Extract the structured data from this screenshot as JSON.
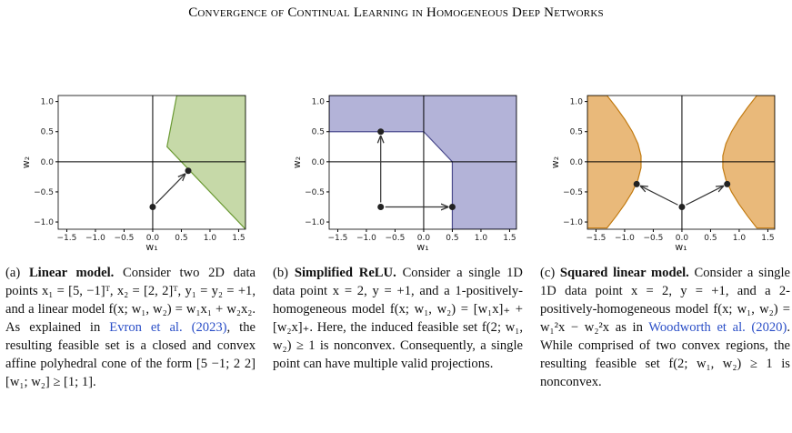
{
  "header": {
    "title": "Convergence of Continual Learning in Homogeneous Deep Networks"
  },
  "chart_data": [
    {
      "type": "region",
      "xlabel": "w₁",
      "ylabel": "w₂",
      "xlim": [
        -1.65,
        1.62
      ],
      "ylim": [
        -1.12,
        1.1
      ],
      "xticks": [
        {
          "value": -1.5,
          "label": "−1.5"
        },
        {
          "value": -1.0,
          "label": "−1.0"
        },
        {
          "value": -0.5,
          "label": "−0.5"
        },
        {
          "value": 0,
          "label": "0.0"
        },
        {
          "value": 0.5,
          "label": "0.5"
        },
        {
          "value": 1.0,
          "label": "1.0"
        },
        {
          "value": 1.5,
          "label": "1.5"
        }
      ],
      "yticks": [
        {
          "value": -1.0,
          "label": "−1.0"
        },
        {
          "value": -0.5,
          "label": "−0.5"
        },
        {
          "value": 0,
          "label": "0.0"
        },
        {
          "value": 0.5,
          "label": "0.5"
        },
        {
          "value": 1.0,
          "label": "1.0"
        }
      ],
      "regions": [
        {
          "color": "#c6d9a8",
          "edge": "#6b9a34",
          "x": [
            0.25,
            0.42,
            1.62,
            1.62
          ],
          "y": [
            0.25,
            1.1,
            1.1,
            -1.12
          ]
        }
      ],
      "points": {
        "x": [
          0,
          0.62
        ],
        "y": [
          -0.75,
          -0.15
        ]
      }
    },
    {
      "type": "region",
      "xlabel": "w₁",
      "ylabel": "w₂",
      "xlim": [
        -1.65,
        1.62
      ],
      "ylim": [
        -1.12,
        1.1
      ],
      "xticks": [
        {
          "value": -1.5,
          "label": "−1.5"
        },
        {
          "value": -1.0,
          "label": "−1.0"
        },
        {
          "value": -0.5,
          "label": "−0.5"
        },
        {
          "value": 0,
          "label": "0.0"
        },
        {
          "value": 0.5,
          "label": "0.5"
        },
        {
          "value": 1.0,
          "label": "1.0"
        },
        {
          "value": 1.5,
          "label": "1.5"
        }
      ],
      "yticks": [
        {
          "value": -1.0,
          "label": "−1.0"
        },
        {
          "value": -0.5,
          "label": "−0.5"
        },
        {
          "value": 0,
          "label": "0.0"
        },
        {
          "value": 0.5,
          "label": "0.5"
        },
        {
          "value": 1.0,
          "label": "1.0"
        }
      ],
      "regions": [
        {
          "color": "#b3b3d8",
          "edge": "#4a4a8c",
          "x": [
            -1.65,
            0,
            0.5,
            0.5,
            1.62,
            1.62,
            -1.65
          ],
          "y": [
            0.5,
            0.5,
            0,
            -1.12,
            -1.12,
            1.1,
            1.1
          ]
        }
      ],
      "points": {
        "x": [
          -0.75,
          -0.75,
          0.5
        ],
        "y": [
          -0.75,
          0.5,
          -0.75
        ]
      }
    },
    {
      "type": "region",
      "xlabel": "w₁",
      "ylabel": "w₂",
      "xlim": [
        -1.65,
        1.62
      ],
      "ylim": [
        -1.12,
        1.1
      ],
      "xticks": [
        {
          "value": -1.5,
          "label": "−1.5"
        },
        {
          "value": -1.0,
          "label": "−1.0"
        },
        {
          "value": -0.5,
          "label": "−0.5"
        },
        {
          "value": 0,
          "label": "0.0"
        },
        {
          "value": 0.5,
          "label": "0.5"
        },
        {
          "value": 1.0,
          "label": "1.0"
        },
        {
          "value": 1.5,
          "label": "1.5"
        }
      ],
      "yticks": [
        {
          "value": -1.0,
          "label": "−1.0"
        },
        {
          "value": -0.5,
          "label": "−0.5"
        },
        {
          "value": 0,
          "label": "0.0"
        },
        {
          "value": 0.5,
          "label": "0.5"
        },
        {
          "value": 1.0,
          "label": "1.0"
        }
      ],
      "regions": [
        {
          "color": "#e9b97a",
          "edge": "#c27b12",
          "x": [
            1.308,
            1.145,
            0.995,
            0.866,
            0.768,
            0.714,
            0.714,
            0.768,
            0.866,
            0.995,
            1.145,
            1.308,
            1.62,
            1.62
          ],
          "y": [
            -1.1,
            -0.9,
            -0.7,
            -0.5,
            -0.3,
            -0.1,
            0.1,
            0.3,
            0.5,
            0.7,
            0.9,
            1.1,
            1.1,
            -1.1
          ]
        },
        {
          "color": "#e9b97a",
          "edge": "#c27b12",
          "x": [
            -1.308,
            -1.145,
            -0.995,
            -0.866,
            -0.768,
            -0.714,
            -0.714,
            -0.768,
            -0.866,
            -0.995,
            -1.145,
            -1.308,
            -1.65,
            -1.65
          ],
          "y": [
            -1.1,
            -0.9,
            -0.7,
            -0.5,
            -0.3,
            -0.1,
            0.1,
            0.3,
            0.5,
            0.7,
            0.9,
            1.1,
            1.1,
            -1.1
          ]
        }
      ],
      "points": {
        "x": [
          0,
          -0.79,
          0.79
        ],
        "y": [
          -0.75,
          -0.37,
          -0.37
        ]
      }
    }
  ],
  "captions": [
    {
      "label": "(a)",
      "title": "Linear model.",
      "body": "Consider two 2D data points x₁ = [5, −1]ᵀ, x₂ = [2, 2]ᵀ, y₁ = y₂ = +1, and a linear model f(x; w₁, w₂) = w₁x₁ + w₂x₂. As explained in",
      "cite": "Evron et al. (2023)",
      "after": ", the resulting feasible set is a closed and convex affine polyhedral cone of the form [5 −1; 2 2] [w₁; w₂] ≥ [1; 1]."
    },
    {
      "label": "(b)",
      "title": "Simplified ReLU.",
      "body": "Consider a single 1D data point x = 2, y = +1, and a 1-positively-homogeneous model f(x; w₁, w₂) = [w₁x]₊ + [w₂x]₊. Here, the induced feasible set f(2; w₁, w₂) ≥ 1 is nonconvex. Consequently, a single point can have multiple valid projections."
    },
    {
      "label": "(c)",
      "title": "Squared linear model.",
      "body": "Consider a single 1D data point x = 2, y = +1, and a 2-positively-homogeneous model f(x; w₁, w₂) = w₁²x − w₂²x as in",
      "cite": "Woodworth et al. (2020)",
      "after": ". While comprised of two convex regions, the resulting feasible set f(2; w₁, w₂) ≥ 1 is nonconvex."
    }
  ]
}
